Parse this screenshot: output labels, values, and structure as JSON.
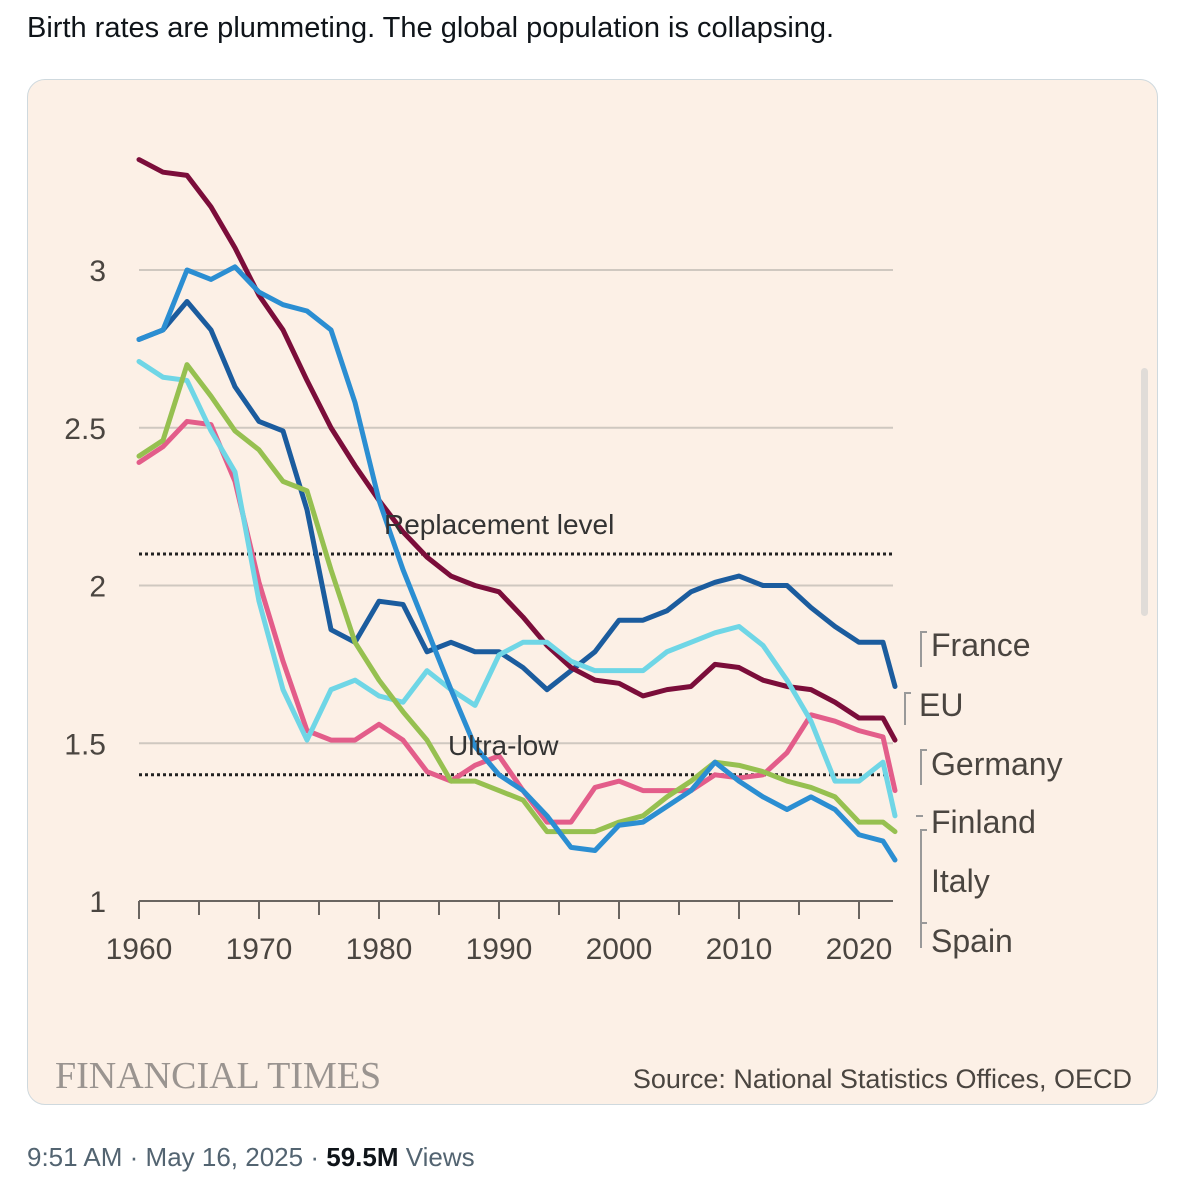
{
  "tweet": {
    "text": "Birth rates are plummeting. The global population is collapsing.",
    "time": "9:51 AM",
    "date": "May 16, 2025",
    "views_count": "59.5M",
    "views_label": "Views",
    "sep": "·"
  },
  "chart_data": {
    "type": "line",
    "title": "",
    "xlabel": "",
    "ylabel": "",
    "xlim": [
      1960,
      2023
    ],
    "ylim": [
      1,
      3.4
    ],
    "x_ticks": [
      "1960",
      "1970",
      "1980",
      "1990",
      "2000",
      "2010",
      "2020"
    ],
    "y_ticks": [
      "1",
      "1.5",
      "2",
      "2.5",
      "3"
    ],
    "grid": true,
    "reference_lines": [
      {
        "label": "Replacement level",
        "value": 2.1
      },
      {
        "label": "Ultra-low",
        "value": 1.4
      }
    ],
    "x": [
      1960,
      1962,
      1964,
      1966,
      1968,
      1970,
      1972,
      1974,
      1976,
      1978,
      1980,
      1982,
      1984,
      1986,
      1988,
      1990,
      1992,
      1994,
      1996,
      1998,
      2000,
      2002,
      2004,
      2006,
      2008,
      2010,
      2012,
      2014,
      2016,
      2018,
      2020,
      2022,
      2023
    ],
    "series": [
      {
        "name": "France",
        "color": "#1b5c9e",
        "values": [
          2.78,
          2.81,
          2.9,
          2.81,
          2.63,
          2.52,
          2.49,
          2.24,
          1.86,
          1.82,
          1.95,
          1.94,
          1.79,
          1.82,
          1.79,
          1.79,
          1.74,
          1.67,
          1.73,
          1.79,
          1.89,
          1.89,
          1.92,
          1.98,
          2.01,
          2.03,
          2.0,
          2.0,
          1.93,
          1.87,
          1.82,
          1.82,
          1.68
        ]
      },
      {
        "name": "EU",
        "color": "#7b0d3a",
        "values": [
          3.35,
          3.31,
          3.3,
          3.2,
          3.07,
          2.92,
          2.81,
          2.65,
          2.5,
          2.38,
          2.27,
          2.17,
          2.09,
          2.03,
          2.0,
          1.98,
          1.9,
          1.81,
          1.74,
          1.7,
          1.69,
          1.65,
          1.67,
          1.68,
          1.75,
          1.74,
          1.7,
          1.68,
          1.67,
          1.63,
          1.58,
          1.58,
          1.51
        ]
      },
      {
        "name": "Germany",
        "color": "#e35d8a",
        "values": [
          2.39,
          2.44,
          2.52,
          2.51,
          2.33,
          2.01,
          1.76,
          1.54,
          1.51,
          1.51,
          1.56,
          1.51,
          1.41,
          1.38,
          1.43,
          1.46,
          1.35,
          1.25,
          1.25,
          1.36,
          1.38,
          1.35,
          1.35,
          1.35,
          1.4,
          1.39,
          1.4,
          1.47,
          1.59,
          1.57,
          1.54,
          1.52,
          1.35
        ]
      },
      {
        "name": "Finland",
        "color": "#6fd6e6",
        "values": [
          2.71,
          2.66,
          2.65,
          2.49,
          2.36,
          1.95,
          1.67,
          1.51,
          1.67,
          1.7,
          1.65,
          1.63,
          1.73,
          1.67,
          1.62,
          1.78,
          1.82,
          1.82,
          1.76,
          1.73,
          1.73,
          1.73,
          1.79,
          1.82,
          1.85,
          1.87,
          1.81,
          1.7,
          1.57,
          1.38,
          1.38,
          1.44,
          1.27
        ]
      },
      {
        "name": "Italy",
        "color": "#96c050",
        "values": [
          2.41,
          2.46,
          2.7,
          2.6,
          2.49,
          2.43,
          2.33,
          2.3,
          2.05,
          1.82,
          1.7,
          1.6,
          1.51,
          1.38,
          1.38,
          1.35,
          1.32,
          1.22,
          1.22,
          1.22,
          1.25,
          1.27,
          1.33,
          1.38,
          1.44,
          1.43,
          1.41,
          1.38,
          1.36,
          1.33,
          1.25,
          1.25,
          1.22
        ]
      },
      {
        "name": "Spain",
        "color": "#2b8ed2",
        "values": [
          2.78,
          2.81,
          3.0,
          2.97,
          3.01,
          2.93,
          2.89,
          2.87,
          2.81,
          2.58,
          2.27,
          2.05,
          1.86,
          1.67,
          1.49,
          1.4,
          1.35,
          1.27,
          1.17,
          1.16,
          1.24,
          1.25,
          1.3,
          1.35,
          1.44,
          1.38,
          1.33,
          1.29,
          1.33,
          1.29,
          1.21,
          1.19,
          1.13
        ]
      }
    ],
    "legend": "right, labels at line ends",
    "branding": "FINANCIAL TIMES",
    "source": "Source: National Statistics Offices, OECD"
  }
}
